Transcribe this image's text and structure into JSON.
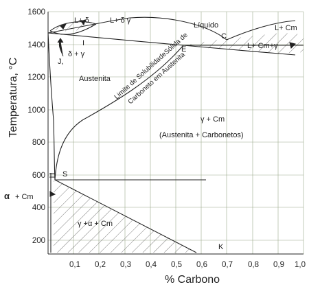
{
  "diagram": {
    "y_label": "Temperatura, °C",
    "x_label": "% Carbono",
    "y_ticks": [
      "1600",
      "1400",
      "1200",
      "1000",
      "800",
      "600",
      "400",
      "200"
    ],
    "x_ticks": [
      "0,1",
      "0,2",
      "0,3",
      "0,4",
      "0,5",
      "0,6",
      "0,7",
      "0,8",
      "0,9",
      "1,0"
    ],
    "y_range": [
      100,
      1600
    ],
    "x_range": [
      0,
      1.0
    ],
    "regions": {
      "liquid": "Líquido",
      "liquid_delta": "L+ δ",
      "liquid_delta_gamma": "L+ δ  γ",
      "delta_gamma": "δ + γ",
      "austenite": "Austenita",
      "liquid_cm": "L+ Cm",
      "liquid_cm_gamma": "L+  Cm+γ",
      "gamma_cm": "γ + Cm",
      "gamma_carbides": "(Austenita + Carbonetos)",
      "gamma_alpha_cm": "γ +α + Cm",
      "alpha_cm": "α",
      "alpha_cm_suffix": "+ Cm",
      "solubility_line_1": "Limite de SolubilidadeSólida de",
      "solubility_line_2": "Carboneto em Austenita"
    },
    "points": {
      "C": "C",
      "E": "E",
      "S": "S",
      "K": "K",
      "I": "I",
      "J": "J,"
    }
  }
}
